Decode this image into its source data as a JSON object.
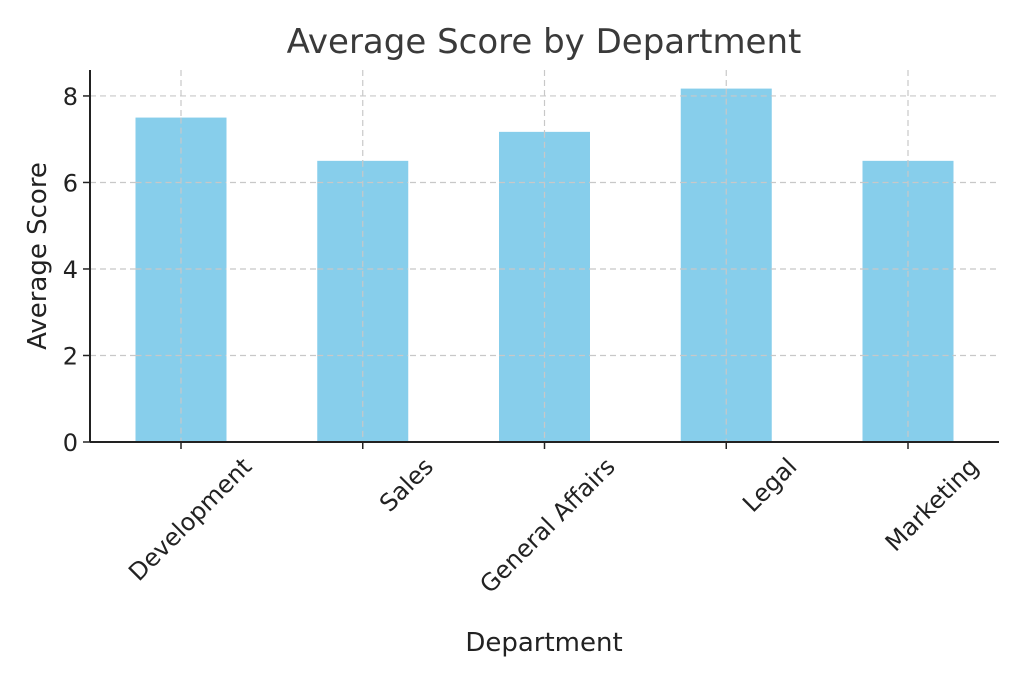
{
  "chart_data": {
    "type": "bar",
    "title": "Average Score by Department",
    "xlabel": "Department",
    "ylabel": "Average Score",
    "categories": [
      "Development",
      "Sales",
      "General Affairs",
      "Legal",
      "Marketing"
    ],
    "values": [
      7.5,
      6.5,
      7.17,
      8.17,
      6.5
    ],
    "ylim": [
      0,
      8.6
    ],
    "yticks": [
      "0",
      "2",
      "4",
      "6",
      "8"
    ],
    "grid": true,
    "bar_color": "#87CEEB",
    "x_tick_rotation_deg": 45
  }
}
